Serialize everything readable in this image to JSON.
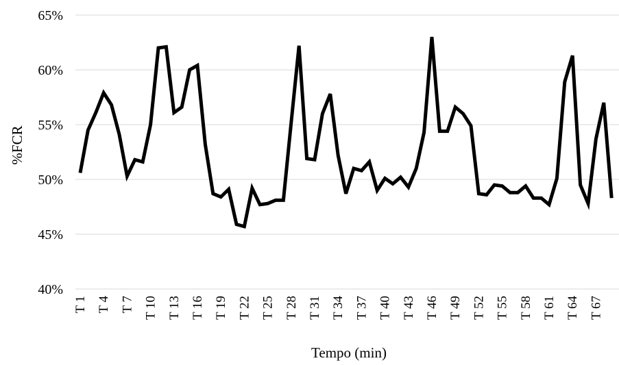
{
  "chart_data": {
    "type": "line",
    "title": "",
    "xlabel": "Tempo (min)",
    "ylabel": "%FCR",
    "ylim": [
      0.4,
      0.65
    ],
    "yticks": [
      0.4,
      0.45,
      0.5,
      0.55,
      0.6,
      0.65
    ],
    "ytick_labels": [
      "40%",
      "45%",
      "50%",
      "55%",
      "60%",
      "65%"
    ],
    "grid": true,
    "legend": "none",
    "line_color": "#000000",
    "categories": [
      "T 1",
      "T 2",
      "T 3",
      "T 4",
      "T 5",
      "T 6",
      "T 7",
      "T 8",
      "T 9",
      "T 10",
      "T 11",
      "T 12",
      "T 13",
      "T 14",
      "T 15",
      "T 16",
      "T 17",
      "T 18",
      "T 19",
      "T 20",
      "T 21",
      "T 22",
      "T 23",
      "T 24",
      "T 25",
      "T 26",
      "T 27",
      "T 28",
      "T 29",
      "T 30",
      "T 31",
      "T 32",
      "T 33",
      "T 34",
      "T 35",
      "T 36",
      "T 37",
      "T 38",
      "T 39",
      "T 40",
      "T 41",
      "T 42",
      "T 43",
      "T 44",
      "T 45",
      "T 46",
      "T 47",
      "T 48",
      "T 49",
      "T 50",
      "T 51",
      "T 52",
      "T 53",
      "T 54",
      "T 55",
      "T 56",
      "T 57",
      "T 58",
      "T 59",
      "T 60",
      "T 61",
      "T 62",
      "T 63",
      "T 64",
      "T 65",
      "T 66",
      "T 67",
      "T 68",
      "T 69"
    ],
    "tick_labels_shown": [
      "T 1",
      "T 4",
      "T 7",
      "T 10",
      "T 13",
      "T 16",
      "T 19",
      "T 22",
      "T 25",
      "T 28",
      "T 31",
      "T 34",
      "T 37",
      "T 40",
      "T 43",
      "T 46",
      "T 49",
      "T 52",
      "T 55",
      "T 58",
      "T 61",
      "T 64",
      "T 67"
    ],
    "series": [
      {
        "values": [
          0.506,
          0.545,
          0.561,
          0.579,
          0.568,
          0.541,
          0.503,
          0.518,
          0.516,
          0.55,
          0.62,
          0.621,
          0.561,
          0.566,
          0.6,
          0.604,
          0.532,
          0.487,
          0.484,
          0.491,
          0.459,
          0.457,
          0.492,
          0.477,
          0.478,
          0.481,
          0.481,
          0.552,
          0.622,
          0.519,
          0.518,
          0.56,
          0.578,
          0.522,
          0.487,
          0.51,
          0.508,
          0.516,
          0.49,
          0.501,
          0.496,
          0.502,
          0.493,
          0.51,
          0.543,
          0.63,
          0.544,
          0.544,
          0.566,
          0.56,
          0.549,
          0.487,
          0.486,
          0.495,
          0.494,
          0.488,
          0.488,
          0.494,
          0.483,
          0.483,
          0.477,
          0.501,
          0.589,
          0.613,
          0.495,
          0.478,
          0.537,
          0.57,
          0.483
        ]
      }
    ]
  }
}
